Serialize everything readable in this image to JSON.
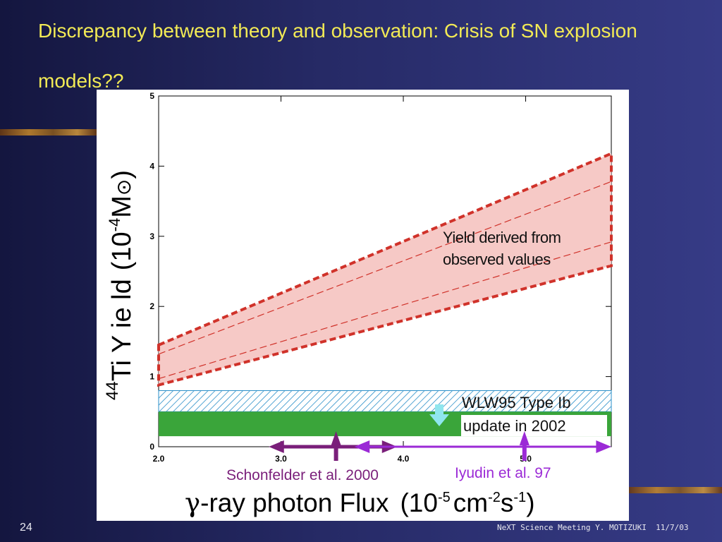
{
  "slide": {
    "title": "Discrepancy between theory and observation: Crisis of SN explosion models??",
    "page_number": "24",
    "footer": "NeXT Science Meeting Y. MOTIZUKI  11/7/03"
  },
  "colors": {
    "band_fill": "#f6c9c6",
    "band_edge": "#d0322a",
    "wlw_hatch": "#2a8fc8",
    "green_bar": "#3aa53a",
    "schonfelder": "#7a1f7a",
    "iyudin": "#9b2ad6",
    "cyan_arrow": "#8fe6ee",
    "title_color": "#f2ea55"
  },
  "chart_data": {
    "type": "area",
    "xlim": [
      2.0,
      5.7
    ],
    "ylim": [
      0,
      5
    ],
    "x_ticks": [
      "2.0",
      "3.0",
      "4.0",
      "5.0"
    ],
    "y_ticks": [
      "0",
      "1",
      "2",
      "3",
      "4",
      "5"
    ],
    "grid": false,
    "xlabel": {
      "prefix_symbol": "γ",
      "main": "-ray photon Flux",
      "unit_open": "(10",
      "unit_exp1": "-5",
      "unit_mid1": "cm",
      "unit_exp2": "-2",
      "unit_mid2": "s",
      "unit_exp3": "-1",
      "unit_close": ")"
    },
    "ylabel": {
      "superscript": "44",
      "main": "Ti Y ie ld",
      "unit_open": "(10",
      "unit_exp": "-4",
      "unit_main": "M",
      "unit_symbol": "⊙",
      "unit_close": ")"
    },
    "series": [
      {
        "name": "Yield derived from observed values",
        "kind": "band",
        "x": [
          2.0,
          5.7
        ],
        "lower": [
          0.88,
          2.58
        ],
        "upper": [
          1.45,
          4.18
        ],
        "inner_lower": [
          0.97,
          2.92
        ],
        "inner_upper": [
          1.32,
          3.78
        ]
      },
      {
        "name": "WLW95 Type Ib",
        "kind": "hatched_band",
        "x": [
          2.0,
          5.7
        ],
        "lower": [
          0.5,
          0.5
        ],
        "upper": [
          0.8,
          0.8
        ]
      },
      {
        "name": "update in 2002",
        "kind": "solid_band",
        "x": [
          2.0,
          5.7
        ],
        "lower": [
          0.15,
          0.15
        ],
        "upper": [
          0.5,
          0.5
        ]
      },
      {
        "name": "Schönfelder et al. 2000",
        "kind": "range",
        "lo": 2.9,
        "hi": 3.95,
        "center": 3.45,
        "y": 0.0
      },
      {
        "name": "Iyudin et al. 97",
        "kind": "range",
        "lo": 3.6,
        "hi": 5.7,
        "center": 4.99,
        "y": 0.0
      }
    ],
    "annotations": [
      {
        "text_line1": "Yield derived from",
        "text_line2": "observed values"
      },
      {
        "text": "WLW95 Type Ib"
      },
      {
        "text": "update in 2002"
      },
      {
        "text": "Schonfelder et al. 2000"
      },
      {
        "text": "Iyudin et al. 97"
      }
    ]
  }
}
